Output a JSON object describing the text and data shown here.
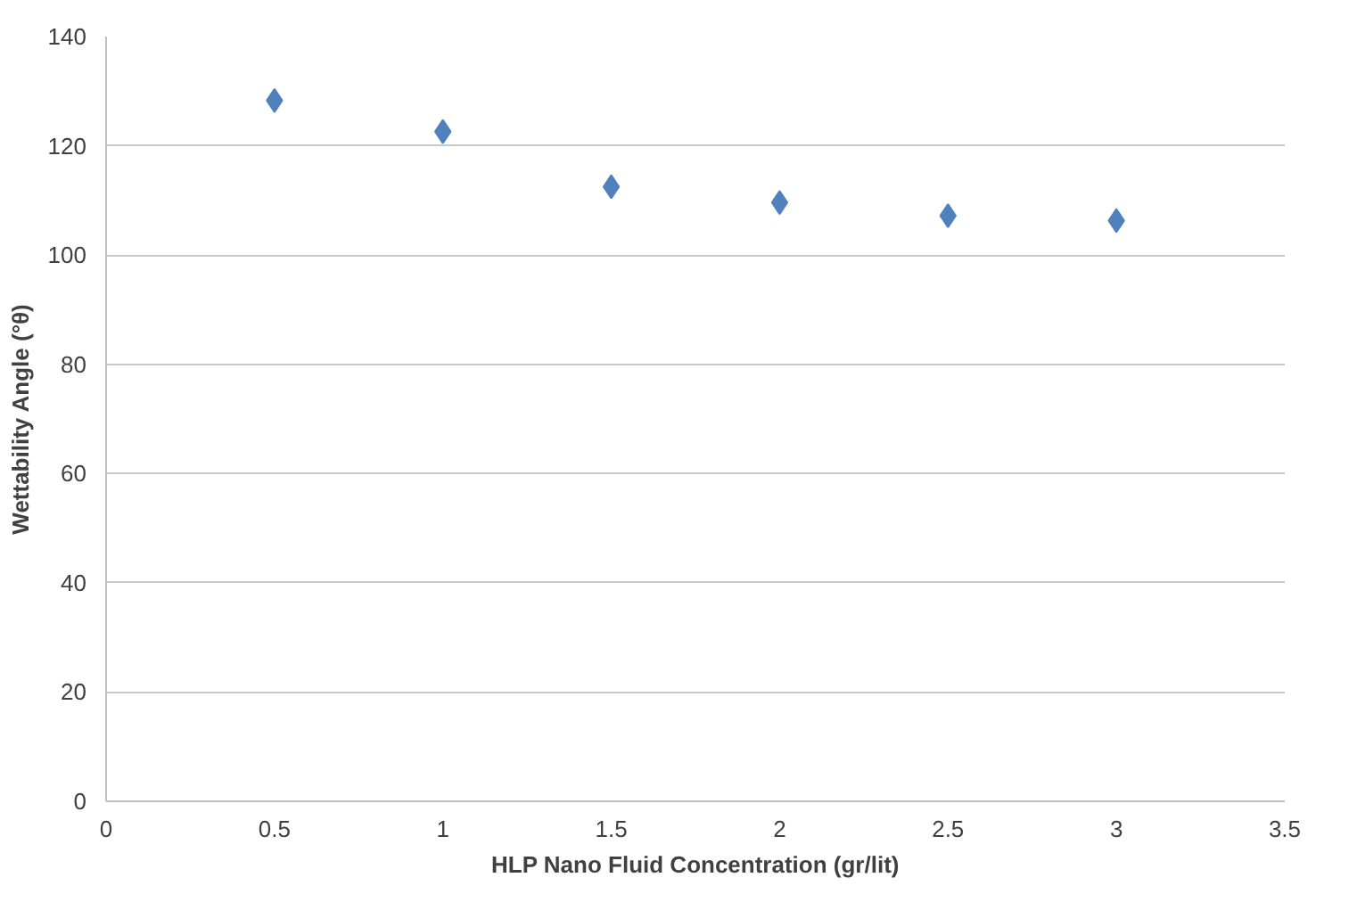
{
  "chart_data": {
    "type": "scatter",
    "xlabel": "HLP Nano Fluid Concentration (gr/lit)",
    "ylabel": "Wettability Angle (°θ)",
    "x": [
      0.5,
      1,
      1.5,
      2,
      2.5,
      3
    ],
    "series": [
      {
        "color": "#4f81bd",
        "values": [
          128.3,
          122.6,
          112.5,
          109.6,
          107.2,
          106.3
        ]
      }
    ],
    "xlim": [
      0,
      3.5
    ],
    "xticks": [
      0,
      0.5,
      1,
      1.5,
      2,
      2.5,
      3,
      3.5
    ],
    "ylim": [
      0,
      140
    ],
    "yticks": [
      0,
      20,
      40,
      60,
      80,
      100,
      120,
      140
    ],
    "grid": "y",
    "marker": "diamond"
  }
}
